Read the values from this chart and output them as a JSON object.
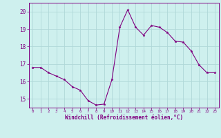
{
  "x": [
    0,
    1,
    2,
    3,
    4,
    5,
    6,
    7,
    8,
    9,
    10,
    11,
    12,
    13,
    14,
    15,
    16,
    17,
    18,
    19,
    20,
    21,
    22,
    23
  ],
  "y": [
    16.8,
    16.8,
    16.5,
    16.3,
    16.1,
    15.7,
    15.5,
    14.9,
    14.65,
    14.7,
    16.1,
    19.1,
    20.1,
    19.1,
    18.65,
    19.2,
    19.1,
    18.8,
    18.3,
    18.25,
    17.75,
    16.95,
    16.5,
    16.5
  ],
  "line_color": "#800080",
  "marker": "*",
  "marker_size": 2.5,
  "bg_color": "#cef0ee",
  "grid_color": "#b0d8d8",
  "ylabel_ticks": [
    15,
    16,
    17,
    18,
    19,
    20
  ],
  "xlabel": "Windchill (Refroidissement éolien,°C)",
  "xlim": [
    -0.5,
    23.5
  ],
  "ylim": [
    14.5,
    20.5
  ],
  "tick_color": "#800080",
  "label_color": "#800080"
}
